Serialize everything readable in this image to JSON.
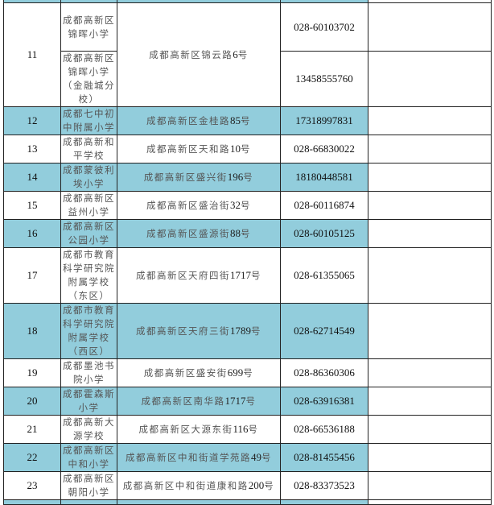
{
  "colors": {
    "highlight": "#92CDDC",
    "border": "#222222"
  },
  "rows": [
    {
      "no": "11",
      "highlight": false,
      "address": "成都高新区锦云路6号",
      "subs": [
        {
          "name": "成都高新区锦晖小学",
          "phone": "028-60103702"
        },
        {
          "name": "成都高新区锦晖小学（金融城分校）",
          "phone": "13458555760"
        }
      ]
    },
    {
      "no": "12",
      "highlight": true,
      "name": "成都七中初中附属小学",
      "address": "成都高新区金桂路85号",
      "phone": "17318997831"
    },
    {
      "no": "13",
      "highlight": false,
      "name": "成都高新和平学校",
      "address": "成都高新区天和路10号",
      "phone": "028-66830022"
    },
    {
      "no": "14",
      "highlight": true,
      "name": "成都蒙彼利埃小学",
      "address": "成都高新区盛兴街196号",
      "phone": "18180448581"
    },
    {
      "no": "15",
      "highlight": false,
      "name": "成都高新区益州小学",
      "address": "成都高新区盛治街32号",
      "phone": "028-60116874"
    },
    {
      "no": "16",
      "highlight": true,
      "name": "成都高新区公园小学",
      "address": "成都高新区盛源街88号",
      "phone": "028-60105125"
    },
    {
      "no": "17",
      "highlight": false,
      "name": "成都市教育科学研究院附属学校（东区）",
      "address": "成都高新区天府四街1717号",
      "phone": "028-61355065"
    },
    {
      "no": "18",
      "highlight": true,
      "name": "成都市教育科学研究院附属学校（西区）",
      "address": "成都高新区天府三街1789号",
      "phone": "028-62714549"
    },
    {
      "no": "19",
      "highlight": false,
      "name": "成都墨池书院小学",
      "address": "成都高新区盛安街699号",
      "phone": "028-86360306"
    },
    {
      "no": "20",
      "highlight": true,
      "name": "成都霍森斯小学",
      "address": "成都高新区南华路1717号",
      "phone": "028-63916381"
    },
    {
      "no": "21",
      "highlight": false,
      "name": "成都高新大源学校",
      "address": "成都高新区大源东街116号",
      "phone": "028-66536188"
    },
    {
      "no": "22",
      "highlight": true,
      "name": "成都高新区中和小学",
      "address": "成都高新区中和街道学苑路49号",
      "phone": "028-81455456"
    },
    {
      "no": "23",
      "highlight": false,
      "name": "成都高新区朝阳小学",
      "address": "成都高新区中和街道康和路200号",
      "phone": "028-83373523"
    }
  ]
}
